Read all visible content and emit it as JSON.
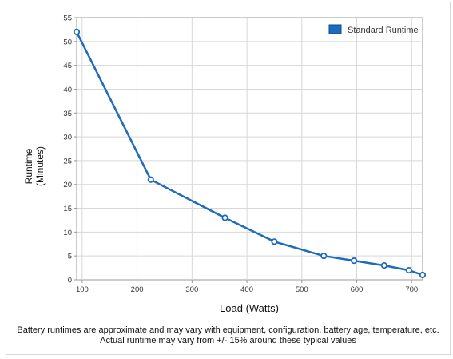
{
  "chart_data": {
    "type": "line",
    "xlabel": "Load (Watts)",
    "ylabel_line1": "Runtime",
    "ylabel_line2": "(Minutes)",
    "xlim": [
      90,
      720
    ],
    "ylim": [
      0,
      55
    ],
    "x_ticks": [
      100,
      200,
      300,
      400,
      500,
      600,
      700
    ],
    "y_ticks": [
      0,
      5,
      10,
      15,
      20,
      25,
      30,
      35,
      40,
      45,
      50,
      55
    ],
    "grid": true,
    "legend_position": "top-right",
    "series": [
      {
        "name": "Standard Runtime",
        "color": "#1c6bbd",
        "x": [
          90,
          225,
          360,
          450,
          540,
          595,
          650,
          695,
          720
        ],
        "y": [
          52,
          21,
          13,
          8,
          5,
          4,
          3,
          2,
          1
        ]
      }
    ]
  },
  "caption": {
    "line1": "Battery runtimes are approximate and may vary with equipment, configuration, battery age, temperature, etc.",
    "line2": "Actual runtime may vary from +/- 15% around these typical values"
  }
}
